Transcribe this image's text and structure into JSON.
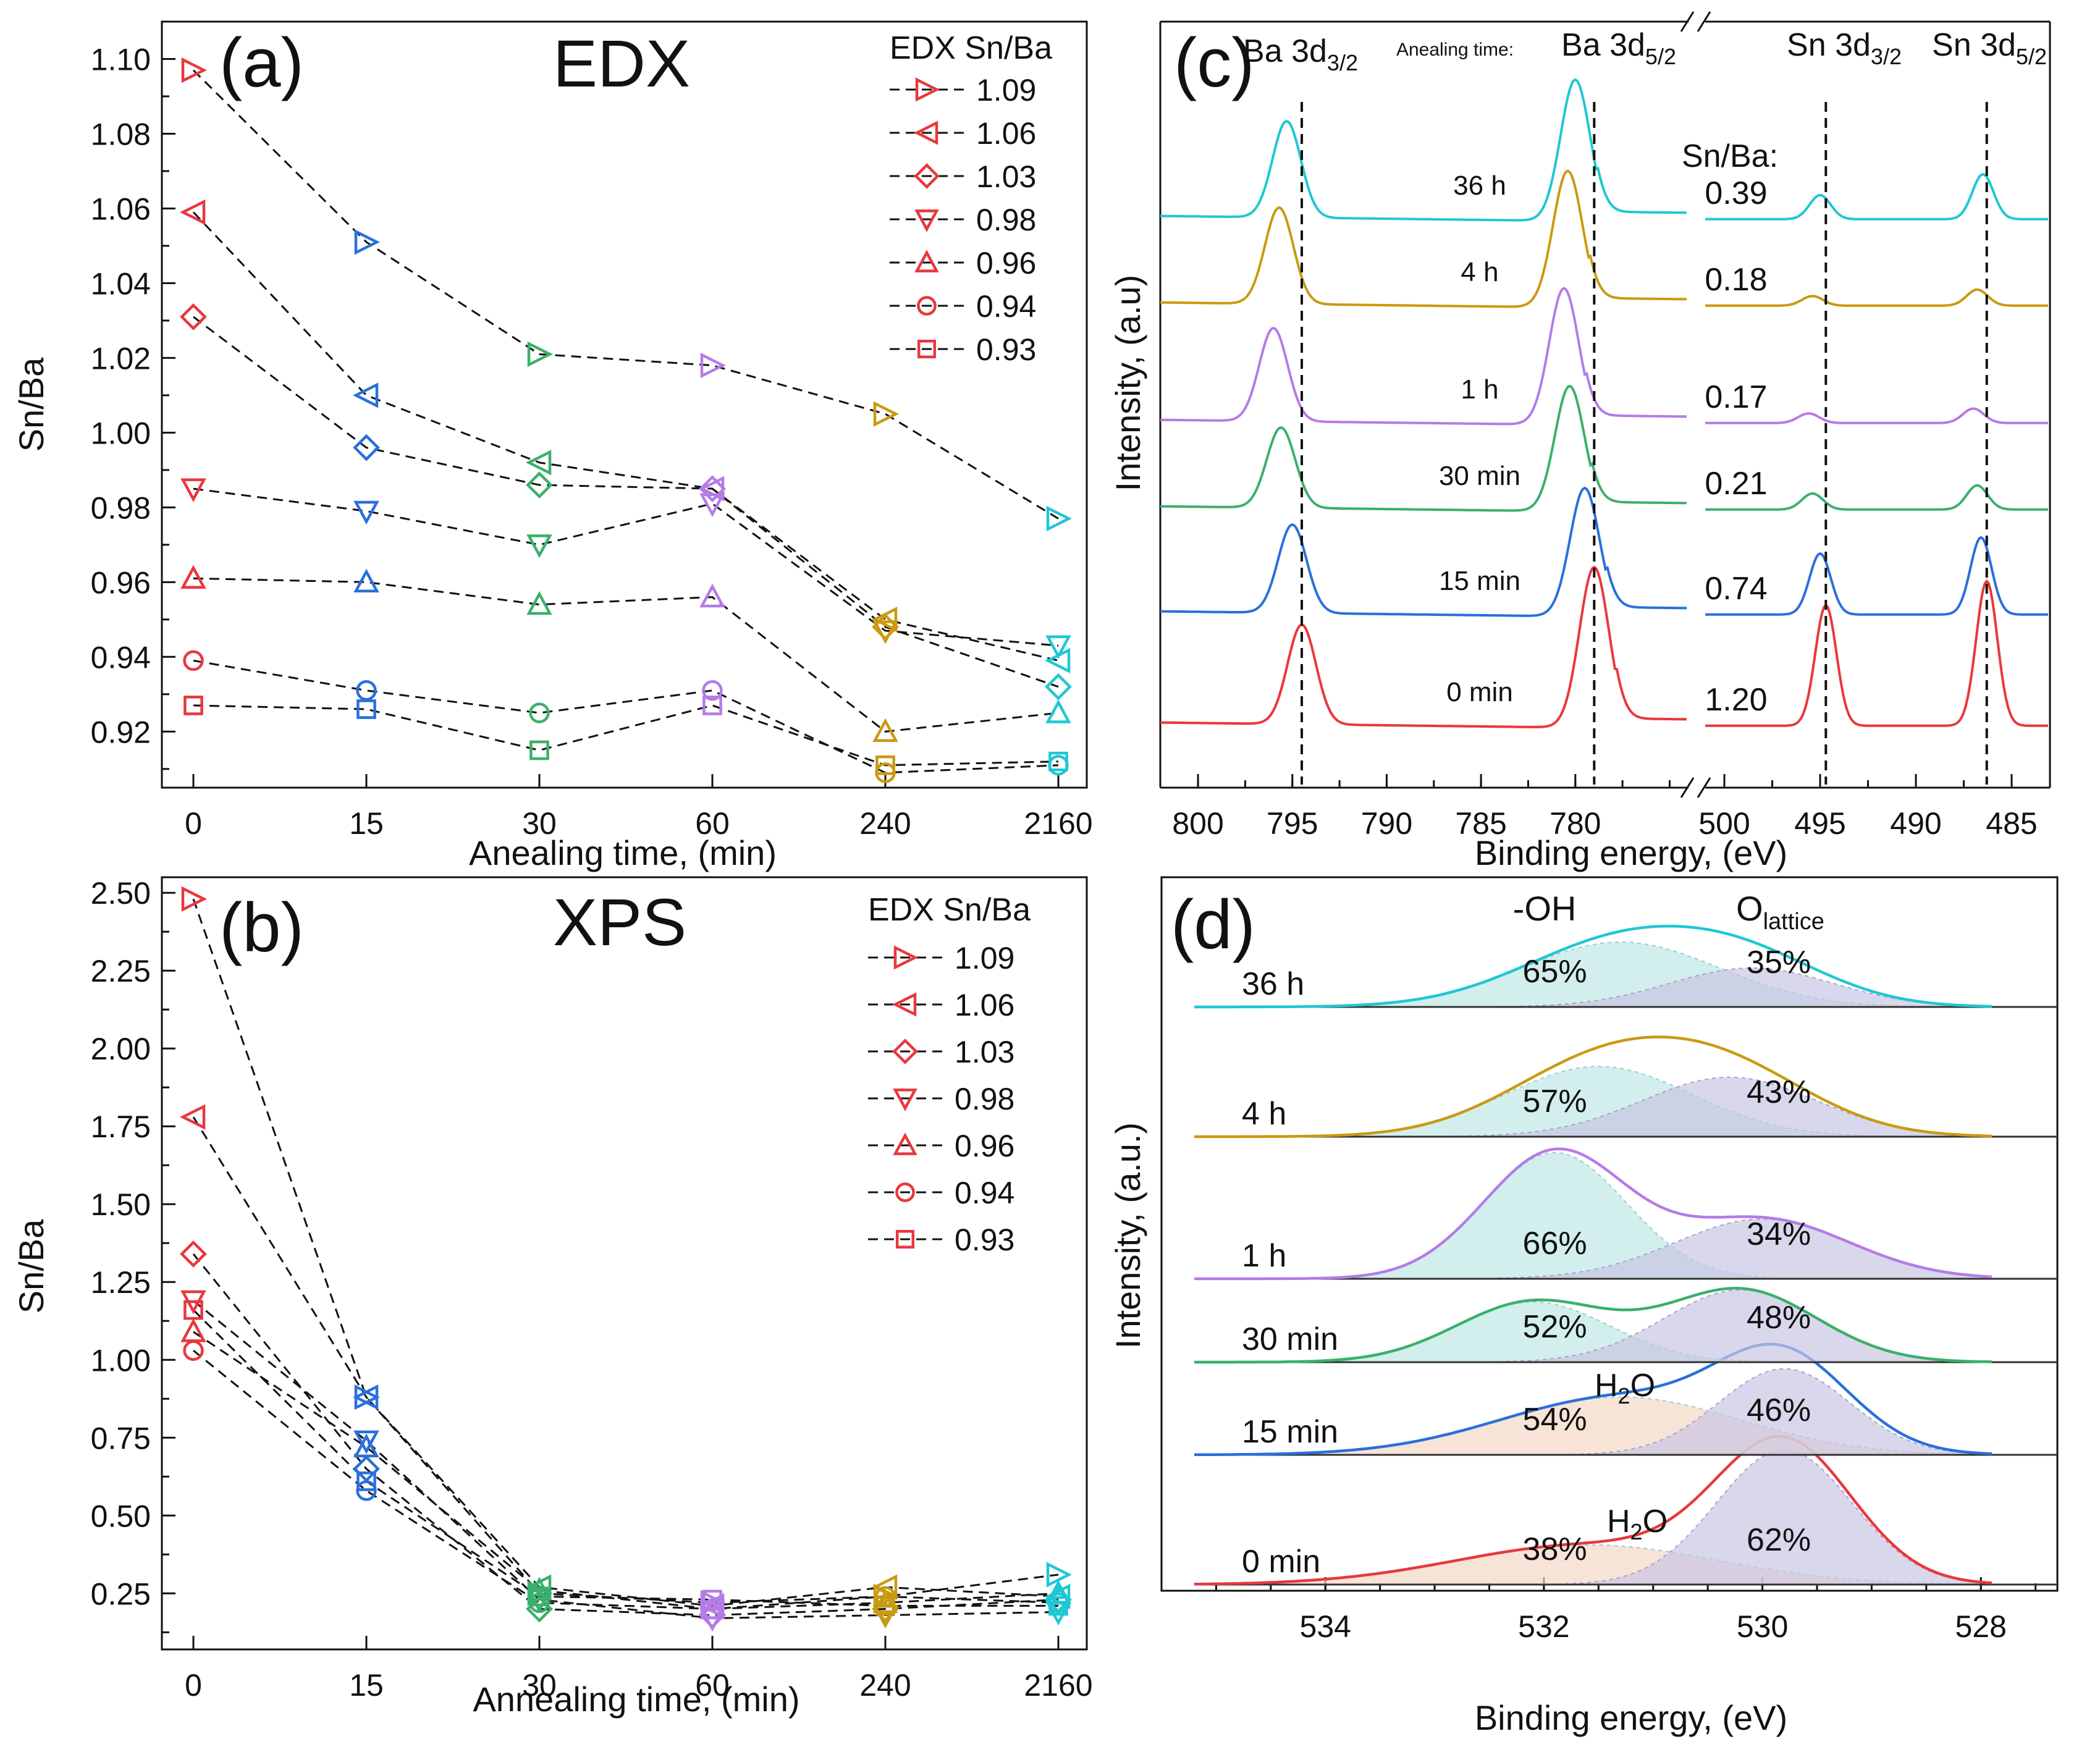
{
  "chart_data": [
    {
      "id": "a",
      "type": "scatter",
      "panel_label": "(a)",
      "title": "EDX",
      "xlabel": "Anealing time, (min)",
      "ylabel": "Sn/Ba",
      "categories": [
        "0",
        "15",
        "30",
        "60",
        "240",
        "2160"
      ],
      "x_colors": [
        "#e8383d",
        "#2a6fdb",
        "#3bb06b",
        "#b57be6",
        "#c99a12",
        "#1fc7d4"
      ],
      "ylim": [
        0.905,
        1.11
      ],
      "yticks": [
        "0.92",
        "0.94",
        "0.96",
        "0.98",
        "1.00",
        "1.02",
        "1.04",
        "1.06",
        "1.08",
        "1.10"
      ],
      "legend_title": "EDX Sn/Ba",
      "series": [
        {
          "name": "1.09",
          "marker": "triangle-right",
          "values": [
            1.097,
            1.051,
            1.021,
            1.018,
            1.005,
            0.977
          ]
        },
        {
          "name": "1.06",
          "marker": "triangle-left",
          "values": [
            1.059,
            1.01,
            0.992,
            0.985,
            0.95,
            0.939
          ]
        },
        {
          "name": "1.03",
          "marker": "diamond",
          "values": [
            1.031,
            0.996,
            0.986,
            0.985,
            0.948,
            0.932
          ]
        },
        {
          "name": "0.98",
          "marker": "triangle-down",
          "values": [
            0.985,
            0.979,
            0.97,
            0.981,
            0.947,
            0.943
          ]
        },
        {
          "name": "0.96",
          "marker": "triangle-up",
          "values": [
            0.961,
            0.96,
            0.954,
            0.956,
            0.92,
            0.925
          ]
        },
        {
          "name": "0.94",
          "marker": "circle",
          "values": [
            0.939,
            0.931,
            0.925,
            0.931,
            0.909,
            0.911
          ]
        },
        {
          "name": "0.93",
          "marker": "square",
          "values": [
            0.927,
            0.926,
            0.915,
            0.927,
            0.911,
            0.912
          ]
        }
      ]
    },
    {
      "id": "b",
      "type": "scatter",
      "panel_label": "(b)",
      "title": "XPS",
      "xlabel": "Annealing time, (min)",
      "ylabel": "Sn/Ba",
      "categories": [
        "0",
        "15",
        "30",
        "60",
        "240",
        "2160"
      ],
      "x_colors": [
        "#e8383d",
        "#2a6fdb",
        "#3bb06b",
        "#b57be6",
        "#c99a12",
        "#1fc7d4"
      ],
      "ylim": [
        0.07,
        2.55
      ],
      "yticks": [
        "0.25",
        "0.50",
        "0.75",
        "1.00",
        "1.25",
        "1.50",
        "1.75",
        "2.00",
        "2.25",
        "2.50"
      ],
      "legend_title": "EDX Sn/Ba",
      "series": [
        {
          "name": "1.09",
          "marker": "triangle-right",
          "values": [
            2.48,
            0.88,
            0.25,
            0.22,
            0.24,
            0.31
          ]
        },
        {
          "name": "1.06",
          "marker": "triangle-left",
          "values": [
            1.78,
            0.88,
            0.27,
            0.21,
            0.27,
            0.24
          ]
        },
        {
          "name": "1.03",
          "marker": "diamond",
          "values": [
            1.34,
            0.65,
            0.2,
            0.18,
            0.2,
            0.23
          ]
        },
        {
          "name": "0.98",
          "marker": "triangle-down",
          "values": [
            1.19,
            0.74,
            0.23,
            0.17,
            0.18,
            0.19
          ]
        },
        {
          "name": "0.96",
          "marker": "triangle-up",
          "values": [
            1.09,
            0.72,
            0.26,
            0.2,
            0.22,
            0.25
          ]
        },
        {
          "name": "0.94",
          "marker": "circle",
          "values": [
            1.03,
            0.58,
            0.22,
            0.2,
            0.24,
            0.22
          ]
        },
        {
          "name": "0.93",
          "marker": "square",
          "values": [
            1.16,
            0.61,
            0.24,
            0.23,
            0.21,
            0.21
          ]
        }
      ]
    },
    {
      "id": "c",
      "type": "line",
      "panel_label": "(c)",
      "xlabel": "Binding energy, (eV)",
      "ylabel": "Intensity, (a.u)",
      "xticks_left": [
        "800",
        "795",
        "790",
        "785",
        "780"
      ],
      "xticks_right": [
        "500",
        "495",
        "490",
        "485"
      ],
      "xlim_left": [
        802,
        774
      ],
      "xlim_right": [
        501,
        483
      ],
      "peak_labels": [
        {
          "main": "Ba 3d",
          "sub": "3/2",
          "position_ev": 794.5
        },
        {
          "main": "Ba 3d",
          "sub": "5/2",
          "position_ev": 779
        },
        {
          "main": "Sn 3d",
          "sub": "3/2",
          "position_ev": 494.7
        },
        {
          "main": "Sn 3d",
          "sub": "5/2",
          "position_ev": 486.3
        }
      ],
      "time_header": "Anealing time:",
      "ratio_header": "Sn/Ba:",
      "series": [
        {
          "name": "0 min",
          "color": "#e8383d",
          "ratio": "1.20",
          "ba32": 794.5,
          "ba52": 779.0,
          "sn32": 494.7,
          "sn52": 486.3,
          "h_ba32": 0.62,
          "h_ba52": 1.0,
          "h_sn32": 0.75,
          "h_sn52": 0.9
        },
        {
          "name": "15 min",
          "color": "#2a6fdb",
          "ratio": "0.74",
          "ba32": 795.0,
          "ba52": 779.5,
          "sn32": 495.0,
          "sn52": 486.6,
          "h_ba32": 0.55,
          "h_ba52": 0.8,
          "h_sn32": 0.38,
          "h_sn52": 0.48
        },
        {
          "name": "30 min",
          "color": "#3bb06b",
          "ratio": "0.21",
          "ba32": 795.6,
          "ba52": 780.3,
          "sn32": 495.4,
          "sn52": 486.8,
          "h_ba32": 0.5,
          "h_ba52": 0.78,
          "h_sn32": 0.1,
          "h_sn52": 0.15
        },
        {
          "name": "1 h",
          "color": "#b57be6",
          "ratio": "0.17",
          "ba32": 796.0,
          "ba52": 780.6,
          "sn32": 495.6,
          "sn52": 487.0,
          "h_ba32": 0.58,
          "h_ba52": 0.85,
          "h_sn32": 0.06,
          "h_sn52": 0.09
        },
        {
          "name": "4 h",
          "color": "#c99a12",
          "ratio": "0.18",
          "ba32": 795.7,
          "ba52": 780.4,
          "sn32": 495.4,
          "sn52": 486.8,
          "h_ba32": 0.6,
          "h_ba52": 0.85,
          "h_sn32": 0.06,
          "h_sn52": 0.1
        },
        {
          "name": "36 h",
          "color": "#1fc7d4",
          "ratio": "0.39",
          "ba32": 795.3,
          "ba52": 780.0,
          "sn32": 495.0,
          "sn52": 486.5,
          "h_ba32": 0.6,
          "h_ba52": 0.88,
          "h_sn32": 0.15,
          "h_sn52": 0.28
        }
      ]
    },
    {
      "id": "d",
      "type": "area",
      "panel_label": "(d)",
      "xlabel": "Binding energy, (eV)",
      "ylabel": "Intensity, (a.u.)",
      "xlim": [
        535.5,
        527.3
      ],
      "xticks": [
        "534",
        "532",
        "530",
        "528"
      ],
      "component_labels": [
        "-OH",
        "O",
        "lattice",
        "H",
        "2",
        "O"
      ],
      "series": [
        {
          "name": "0 min",
          "color": "#e8383d",
          "comp1_label": "H2O",
          "comp1_pct": "38%",
          "comp1_center": 531.6,
          "comp1_height": 0.28,
          "comp1_width": 1.2,
          "comp2_pct": "62%",
          "comp2_center": 529.8,
          "comp2_height": 0.95,
          "comp2_width": 0.62
        },
        {
          "name": "15 min",
          "color": "#2a6fdb",
          "comp1_label": "H2O",
          "comp1_pct": "54%",
          "comp1_center": 531.3,
          "comp1_height": 0.55,
          "comp1_width": 1.1,
          "comp2_pct": "46%",
          "comp2_center": 529.8,
          "comp2_height": 0.82,
          "comp2_width": 0.6
        },
        {
          "name": "30 min",
          "color": "#3bb06b",
          "comp1_label": "-OH",
          "comp1_pct": "52%",
          "comp1_center": 532.1,
          "comp1_height": 0.65,
          "comp1_width": 0.7,
          "comp2_pct": "48%",
          "comp2_center": 530.2,
          "comp2_height": 0.78,
          "comp2_width": 0.7
        },
        {
          "name": "1 h",
          "color": "#b57be6",
          "comp1_label": "-OH",
          "comp1_pct": "66%",
          "comp1_center": 531.9,
          "comp1_height": 0.95,
          "comp1_width": 0.65,
          "comp2_pct": "34%",
          "comp2_center": 530.0,
          "comp2_height": 0.45,
          "comp2_width": 0.8
        },
        {
          "name": "4 h",
          "color": "#c99a12",
          "comp1_label": "-OH",
          "comp1_pct": "57%",
          "comp1_center": 531.5,
          "comp1_height": 0.65,
          "comp1_width": 0.85,
          "comp2_pct": "43%",
          "comp2_center": 530.3,
          "comp2_height": 0.55,
          "comp2_width": 0.8
        },
        {
          "name": "36 h",
          "color": "#1fc7d4",
          "comp1_label": "-OH",
          "comp1_pct": "65%",
          "comp1_center": 531.3,
          "comp1_height": 0.75,
          "comp1_width": 0.9,
          "comp2_pct": "35%",
          "comp2_center": 530.1,
          "comp2_height": 0.45,
          "comp2_width": 0.75
        }
      ]
    }
  ]
}
